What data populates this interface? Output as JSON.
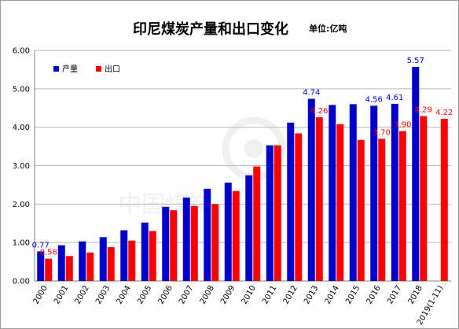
{
  "title": "印尼煤炭产量和出口变化",
  "unit": "单位:亿吨",
  "watermark": "中国煤炭",
  "colors": {
    "production": "#0000cc",
    "export": "#ff0000",
    "grid": "#b8b8b8",
    "axis": "#808080"
  },
  "chart_data": {
    "type": "bar",
    "categories": [
      "2000",
      "2001",
      "2002",
      "2003",
      "2004",
      "2005",
      "2006",
      "2007",
      "2008",
      "2009",
      "2010",
      "2011",
      "2012",
      "2013",
      "2014",
      "2015",
      "2016",
      "2017",
      "2018",
      "2019(1-11)"
    ],
    "series": [
      {
        "name": "产量",
        "values": [
          0.77,
          0.93,
          1.03,
          1.14,
          1.32,
          1.52,
          1.93,
          2.17,
          2.4,
          2.56,
          2.75,
          3.53,
          4.12,
          4.74,
          4.58,
          4.6,
          4.56,
          4.61,
          5.57,
          null
        ]
      },
      {
        "name": "出口",
        "values": [
          0.58,
          0.65,
          0.74,
          0.88,
          1.05,
          1.3,
          1.84,
          1.95,
          2.0,
          2.34,
          2.98,
          3.53,
          3.84,
          4.26,
          4.08,
          3.67,
          3.7,
          3.9,
          4.29,
          4.22
        ]
      }
    ],
    "data_labels": [
      {
        "series": 0,
        "index": 0,
        "text": "0.77"
      },
      {
        "series": 1,
        "index": 0,
        "text": "0.58"
      },
      {
        "series": 0,
        "index": 13,
        "text": "4.74"
      },
      {
        "series": 1,
        "index": 13,
        "text": "4.26"
      },
      {
        "series": 0,
        "index": 16,
        "text": "4.56"
      },
      {
        "series": 1,
        "index": 16,
        "text": "3.70"
      },
      {
        "series": 0,
        "index": 17,
        "text": "4.61"
      },
      {
        "series": 1,
        "index": 17,
        "text": "3.90"
      },
      {
        "series": 0,
        "index": 18,
        "text": "5.57"
      },
      {
        "series": 1,
        "index": 18,
        "text": "4.29"
      },
      {
        "series": 1,
        "index": 19,
        "text": "4.22"
      }
    ],
    "ylim": [
      0,
      6
    ],
    "yticks": [
      "0.00",
      "1.00",
      "2.00",
      "3.00",
      "4.00",
      "5.00",
      "6.00"
    ],
    "grid": true,
    "legend_position": "top-left",
    "xlabel": "",
    "ylabel": ""
  }
}
